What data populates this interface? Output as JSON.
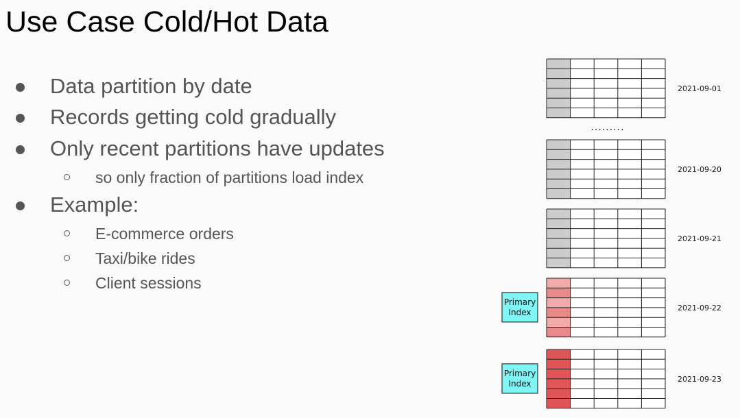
{
  "slide": {
    "title": "Use Case Cold/Hot Data",
    "bullets": [
      {
        "text": "Data partition by date",
        "sub": []
      },
      {
        "text": "Records getting cold gradually",
        "sub": []
      },
      {
        "text": "Only recent partitions have updates",
        "sub": [
          "so only fraction of partitions load index"
        ]
      },
      {
        "text": "Example:",
        "sub": [
          "E-commerce orders",
          "Taxi/bike rides",
          "Client sessions"
        ]
      }
    ]
  },
  "diagram": {
    "partitions": [
      {
        "date": "2021-09-01",
        "state": "cold",
        "index_loaded": false
      },
      {
        "date": "2021-09-20",
        "state": "cold",
        "index_loaded": false
      },
      {
        "date": "2021-09-21",
        "state": "cold",
        "index_loaded": false
      },
      {
        "date": "2021-09-22",
        "state": "warm",
        "index_loaded": true
      },
      {
        "date": "2021-09-23",
        "state": "hot",
        "index_loaded": true
      }
    ],
    "ellipsis": ".........",
    "index_label_line1": "Primary",
    "index_label_line2": "Index",
    "colors": {
      "cold": "#cccccc",
      "warm": "#ee9999",
      "hot": "#e05555",
      "index_box": "#80f5f5"
    }
  }
}
